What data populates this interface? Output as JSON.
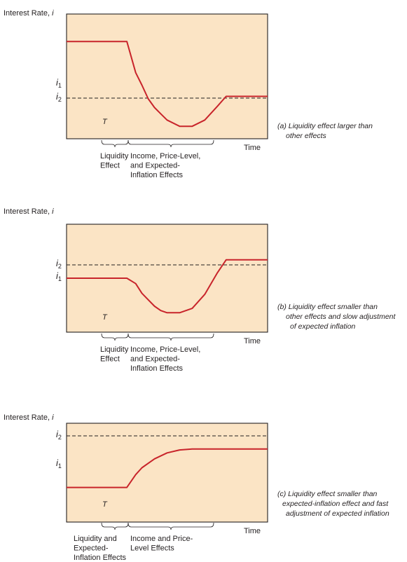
{
  "chart_data": [
    {
      "type": "line",
      "panel": "a",
      "ylabel": "Interest Rate, i",
      "xlabel": "Time",
      "y_tick_labels": [
        "i1",
        "i2"
      ],
      "reference_line": "i2 (dashed)",
      "event_label": "T",
      "series": [
        {
          "x": [
            0,
            0.25,
            0.5,
            1,
            2,
            3,
            4,
            4.8,
            5.5,
            6,
            6.5,
            7,
            7.5,
            8,
            9,
            10,
            11,
            12,
            12.7,
            14,
            15.5,
            16
          ],
          "values": [
            0.78,
            0.78,
            0.78,
            0.78,
            0.78,
            0.78,
            0.78,
            0.78,
            0.53,
            0.43,
            0.32,
            0.25,
            0.2,
            0.15,
            0.1,
            0.1,
            0.15,
            0.26,
            0.34,
            0.34,
            0.34,
            0.34
          ]
        }
      ],
      "brackets": [
        {
          "label_lines": [
            "Liquidity",
            "Effect"
          ]
        },
        {
          "label_lines": [
            "Income, Price-Level,",
            "and Expected-",
            "Inflation Effects"
          ]
        }
      ],
      "caption_lines": [
        "(a) Liquidity effect larger than",
        "other effects"
      ],
      "colors": {
        "panel": "#fbe4c5",
        "curve": "#c8242b",
        "axes": "#231f20"
      }
    },
    {
      "type": "line",
      "panel": "b",
      "ylabel": "Interest Rate, i",
      "xlabel": "Time",
      "y_tick_labels": [
        "i2",
        "i1"
      ],
      "reference_line": "i2 (dashed)",
      "event_label": "T",
      "series": [
        {
          "x": [
            0,
            2,
            4,
            4.8,
            5.5,
            6,
            6.5,
            7,
            7.5,
            8,
            9,
            10,
            11,
            12,
            12.7,
            14,
            16
          ],
          "values": [
            0.5,
            0.5,
            0.5,
            0.5,
            0.45,
            0.36,
            0.3,
            0.24,
            0.2,
            0.18,
            0.18,
            0.22,
            0.35,
            0.55,
            0.67,
            0.67,
            0.67
          ]
        }
      ],
      "brackets": [
        {
          "label_lines": [
            "Liquidity",
            "Effect"
          ]
        },
        {
          "label_lines": [
            "Income, Price-Level,",
            "and Expected-",
            "Inflation Effects"
          ]
        }
      ],
      "caption_lines": [
        "(b) Liquidity effect smaller than",
        "other effects and slow adjustment",
        "of expected inflation"
      ],
      "colors": {
        "panel": "#fbe4c5",
        "curve": "#c8242b",
        "axes": "#231f20"
      }
    },
    {
      "type": "line",
      "panel": "c",
      "ylabel": "Interest Rate, i",
      "xlabel": "Time",
      "y_tick_labels": [
        "i2",
        "i1"
      ],
      "reference_line": "i2 (dashed)",
      "event_label": "T",
      "series": [
        {
          "x": [
            0,
            2,
            4,
            4.8,
            5.5,
            6,
            7,
            8,
            9,
            10,
            12,
            14,
            16
          ],
          "values": [
            0.35,
            0.35,
            0.35,
            0.35,
            0.48,
            0.55,
            0.64,
            0.7,
            0.73,
            0.74,
            0.74,
            0.74,
            0.74
          ]
        }
      ],
      "brackets": [
        {
          "label_lines": [
            "Liquidity and",
            "Expected-",
            "Inflation Effects"
          ]
        },
        {
          "label_lines": [
            "Income and Price-",
            "Level Effects"
          ]
        }
      ],
      "caption_lines": [
        "(c) Liquidity effect smaller than",
        "expected-inflation effect and fast",
        "adjustment of expected inflation"
      ],
      "colors": {
        "panel": "#fbe4c5",
        "curve": "#c8242b",
        "axes": "#231f20"
      }
    }
  ]
}
